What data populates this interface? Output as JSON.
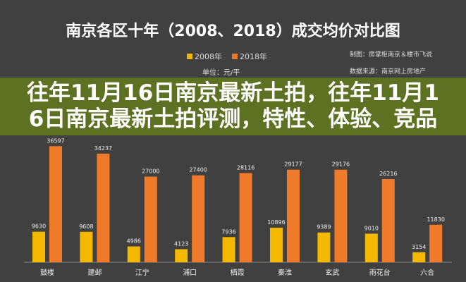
{
  "chart_data": {
    "type": "bar",
    "title": "南京各区十年（2008、2018）成交均价对比图",
    "unit_label": "单位：元/平",
    "credits": [
      "制图：房掌柜南京＆楼市飞说",
      "数据来源：南京网上房地产"
    ],
    "categories": [
      "鼓楼",
      "建邺",
      "江宁",
      "浦口",
      "栖霞",
      "秦淮",
      "玄武",
      "雨花台",
      "六合"
    ],
    "series": [
      {
        "name": "2008年",
        "color": "#f5b800",
        "values": [
          9630,
          9608,
          4986,
          4123,
          7936,
          10896,
          9389,
          9010,
          3154
        ]
      },
      {
        "name": "2018年",
        "color": "#ee7a2a",
        "values": [
          36597,
          34237,
          27000,
          27400,
          28116,
          29177,
          29176,
          26216,
          11830
        ]
      }
    ],
    "ylim": [
      0,
      40000
    ],
    "grid": false,
    "legend": "top-center"
  },
  "overlay": {
    "line1": "往年11月16日南京最新土拍，往年11月1",
    "line2": "6日南京最新土拍评测，特性、体验、竞品"
  }
}
